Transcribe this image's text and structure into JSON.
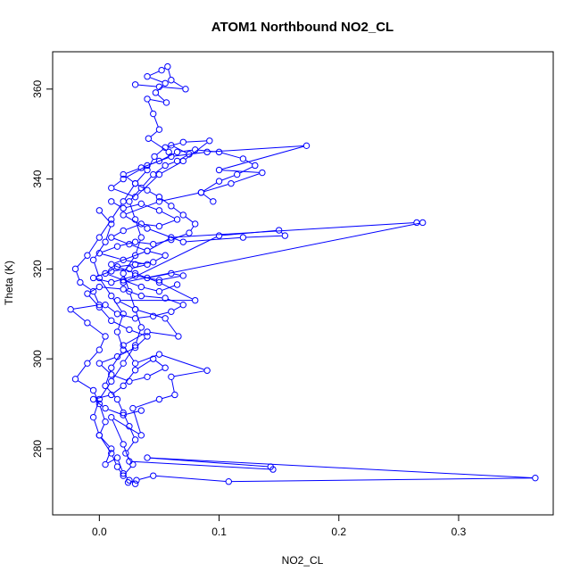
{
  "chart_data": {
    "type": "scatter",
    "title": "ATOM1 Northbound NO2_CL",
    "xlabel": "NO2_CL",
    "ylabel": "Theta (K)",
    "xlim": [
      -0.039,
      0.379
    ],
    "ylim": [
      265.3,
      368.3
    ],
    "xticks": [
      {
        "value": 0.0,
        "label": "0.0"
      },
      {
        "value": 0.1,
        "label": "0.1"
      },
      {
        "value": 0.2,
        "label": "0.2"
      },
      {
        "value": 0.3,
        "label": "0.3"
      }
    ],
    "yticks": [
      {
        "value": 280,
        "label": "280"
      },
      {
        "value": 300,
        "label": "300"
      },
      {
        "value": 320,
        "label": "320"
      },
      {
        "value": 340,
        "label": "340"
      },
      {
        "value": 360,
        "label": "360"
      }
    ],
    "color": "#0000ff",
    "marker": "open-circle",
    "connected": true,
    "grid": false,
    "legend": "none",
    "series": [
      {
        "points": [
          [
            0.024,
            272.5
          ],
          [
            0.031,
            273.0
          ],
          [
            0.045,
            274.0
          ],
          [
            0.108,
            272.7
          ],
          [
            0.364,
            273.5
          ],
          [
            0.04,
            278.0
          ],
          [
            0.143,
            276.0
          ],
          [
            0.145,
            275.4
          ],
          [
            0.025,
            277.2
          ],
          [
            0.02,
            281.0
          ],
          [
            0.01,
            287.0
          ],
          [
            0.035,
            283.0
          ],
          [
            0.028,
            289.0
          ],
          [
            0.05,
            291.0
          ],
          [
            0.063,
            292.0
          ],
          [
            0.06,
            296.0
          ],
          [
            0.09,
            297.4
          ],
          [
            0.05,
            301.0
          ],
          [
            0.03,
            299.0
          ],
          [
            0.02,
            303.0
          ],
          [
            0.04,
            306.0
          ],
          [
            0.066,
            305.0
          ],
          [
            0.055,
            309.0
          ],
          [
            0.03,
            311.0
          ],
          [
            0.015,
            313.0
          ],
          [
            0.08,
            313.0
          ],
          [
            0.05,
            317.0
          ],
          [
            0.03,
            319.0
          ],
          [
            0.01,
            321.0
          ],
          [
            0.04,
            324.0
          ],
          [
            0.06,
            327.0
          ],
          [
            0.265,
            330.3
          ],
          [
            0.27,
            330.3
          ],
          [
            0.02,
            317.0
          ],
          [
            0.1,
            327.4
          ],
          [
            0.15,
            328.6
          ],
          [
            0.155,
            327.4
          ],
          [
            0.12,
            327.0
          ],
          [
            0.07,
            326.0
          ],
          [
            0.04,
            329.0
          ],
          [
            0.02,
            332.0
          ],
          [
            0.05,
            335.0
          ],
          [
            0.085,
            337.0
          ],
          [
            0.11,
            339.0
          ],
          [
            0.136,
            341.4
          ],
          [
            0.1,
            342.0
          ],
          [
            0.173,
            347.4
          ],
          [
            0.09,
            346.0
          ],
          [
            0.06,
            345.0
          ],
          [
            0.04,
            343.0
          ],
          [
            0.02,
            340.0
          ],
          [
            0.01,
            338.0
          ],
          [
            0.03,
            336.0
          ],
          [
            0.05,
            341.0
          ],
          [
            0.07,
            344.0
          ],
          [
            0.092,
            348.5
          ],
          [
            0.07,
            348.2
          ],
          [
            0.055,
            347.0
          ],
          [
            0.046,
            345.0
          ],
          [
            0.04,
            342.0
          ],
          [
            0.03,
            339.0
          ],
          [
            0.02,
            335.0
          ],
          [
            0.01,
            331.0
          ],
          [
            0.0,
            327.0
          ],
          [
            -0.01,
            323.0
          ],
          [
            -0.02,
            320.0
          ],
          [
            -0.016,
            317.0
          ],
          [
            -0.005,
            315.0
          ],
          [
            0.0,
            312.0
          ],
          [
            -0.024,
            311.0
          ],
          [
            -0.01,
            308.0
          ],
          [
            0.005,
            305.0
          ],
          [
            0.0,
            302.0
          ],
          [
            -0.01,
            299.0
          ],
          [
            -0.02,
            295.5
          ],
          [
            -0.005,
            293.0
          ],
          [
            0.0,
            290.0
          ],
          [
            0.005,
            286.0
          ],
          [
            0.0,
            283.0
          ],
          [
            0.01,
            280.0
          ],
          [
            0.005,
            276.5
          ],
          [
            0.015,
            278.0
          ],
          [
            0.02,
            274.5
          ],
          [
            0.025,
            273.0
          ],
          [
            0.03,
            272.2
          ]
        ]
      },
      {
        "points": [
          [
            0.03,
            361.0
          ],
          [
            0.05,
            360.5
          ],
          [
            0.072,
            360.0
          ],
          [
            0.06,
            362.0
          ],
          [
            0.057,
            365.0
          ],
          [
            0.052,
            364.2
          ],
          [
            0.04,
            362.8
          ],
          [
            0.055,
            361.3
          ],
          [
            0.047,
            359.2
          ],
          [
            0.056,
            357.0
          ],
          [
            0.04,
            357.8
          ],
          [
            0.045,
            354.5
          ],
          [
            0.05,
            351.0
          ],
          [
            0.041,
            349.0
          ],
          [
            0.058,
            346.0
          ]
        ]
      },
      {
        "points": [
          [
            0.0,
            333.0
          ],
          [
            0.01,
            330.0
          ],
          [
            0.005,
            326.0
          ],
          [
            -0.005,
            322.0
          ],
          [
            0.0,
            318.0
          ],
          [
            0.01,
            314.0
          ],
          [
            0.02,
            310.0
          ],
          [
            0.015,
            306.0
          ],
          [
            0.02,
            302.0
          ],
          [
            0.01,
            298.0
          ],
          [
            0.005,
            294.0
          ],
          [
            0.015,
            291.0
          ],
          [
            0.02,
            288.0
          ],
          [
            0.025,
            285.0
          ],
          [
            0.03,
            282.0
          ],
          [
            0.022,
            279.0
          ],
          [
            0.028,
            276.5
          ],
          [
            0.02,
            274.0
          ],
          [
            0.015,
            276.0
          ],
          [
            0.01,
            279.0
          ],
          [
            0.0,
            283.0
          ],
          [
            -0.005,
            287.0
          ],
          [
            0.0,
            291.0
          ],
          [
            0.01,
            295.0
          ],
          [
            0.02,
            299.0
          ],
          [
            0.03,
            303.0
          ],
          [
            0.035,
            307.0
          ],
          [
            0.03,
            311.0
          ],
          [
            0.025,
            315.0
          ],
          [
            0.02,
            319.0
          ],
          [
            0.03,
            323.0
          ],
          [
            0.035,
            327.0
          ],
          [
            0.03,
            331.0
          ],
          [
            0.025,
            335.0
          ],
          [
            0.035,
            338.0
          ],
          [
            0.045,
            341.0
          ],
          [
            0.055,
            343.0
          ],
          [
            0.065,
            344.0
          ],
          [
            0.075,
            345.5
          ],
          [
            0.06,
            347.5
          ]
        ]
      },
      {
        "points": [
          [
            0.04,
            318.0
          ],
          [
            0.06,
            319.0
          ],
          [
            0.07,
            318.5
          ],
          [
            0.05,
            317.5
          ],
          [
            0.03,
            318.5
          ],
          [
            0.01,
            317.0
          ],
          [
            -0.005,
            318.0
          ],
          [
            0.01,
            319.5
          ],
          [
            0.025,
            320.0
          ],
          [
            0.04,
            321.0
          ],
          [
            0.02,
            322.0
          ],
          [
            0.0,
            323.5
          ],
          [
            0.015,
            325.0
          ],
          [
            0.03,
            326.0
          ],
          [
            0.045,
            325.5
          ],
          [
            0.06,
            326.5
          ],
          [
            0.075,
            328.0
          ],
          [
            0.08,
            330.0
          ],
          [
            0.07,
            332.0
          ],
          [
            0.06,
            334.0
          ],
          [
            0.05,
            336.0
          ],
          [
            0.04,
            337.5
          ],
          [
            0.03,
            339.0
          ],
          [
            0.02,
            341.0
          ],
          [
            0.035,
            342.5
          ],
          [
            0.05,
            344.0
          ],
          [
            0.065,
            346.0
          ],
          [
            0.08,
            346.5
          ],
          [
            0.1,
            346.0
          ],
          [
            0.12,
            344.5
          ],
          [
            0.13,
            343.0
          ],
          [
            0.115,
            341.0
          ],
          [
            0.1,
            339.5
          ],
          [
            0.085,
            337.0
          ],
          [
            0.095,
            335.0
          ]
        ]
      },
      {
        "points": [
          [
            0.005,
            312.0
          ],
          [
            0.015,
            310.0
          ],
          [
            0.03,
            309.0
          ],
          [
            0.045,
            309.5
          ],
          [
            0.06,
            310.5
          ],
          [
            0.07,
            312.0
          ],
          [
            0.055,
            313.5
          ],
          [
            0.035,
            314.0
          ],
          [
            0.02,
            315.5
          ],
          [
            0.0,
            316.0
          ],
          [
            -0.01,
            314.5
          ],
          [
            0.0,
            311.5
          ],
          [
            0.01,
            308.5
          ],
          [
            0.025,
            306.5
          ],
          [
            0.04,
            305.0
          ],
          [
            0.03,
            302.5
          ],
          [
            0.015,
            300.5
          ],
          [
            0.0,
            299.0
          ],
          [
            0.01,
            296.5
          ],
          [
            0.025,
            295.0
          ],
          [
            0.04,
            296.0
          ],
          [
            0.055,
            298.0
          ],
          [
            0.045,
            300.0
          ],
          [
            0.03,
            297.5
          ],
          [
            0.02,
            294.0
          ],
          [
            0.01,
            292.0
          ],
          [
            -0.005,
            291.0
          ],
          [
            0.005,
            289.0
          ],
          [
            0.02,
            287.5
          ],
          [
            0.035,
            288.5
          ]
        ]
      },
      {
        "points": [
          [
            0.01,
            335.0
          ],
          [
            0.02,
            333.5
          ],
          [
            0.035,
            334.5
          ],
          [
            0.05,
            333.0
          ],
          [
            0.065,
            331.0
          ],
          [
            0.05,
            329.5
          ],
          [
            0.035,
            330.0
          ],
          [
            0.02,
            328.5
          ],
          [
            0.01,
            327.0
          ],
          [
            0.025,
            325.5
          ],
          [
            0.04,
            324.0
          ],
          [
            0.055,
            323.0
          ],
          [
            0.045,
            321.5
          ],
          [
            0.03,
            321.0
          ],
          [
            0.015,
            320.5
          ],
          [
            0.005,
            319.0
          ],
          [
            0.02,
            317.5
          ],
          [
            0.035,
            316.0
          ],
          [
            0.05,
            315.0
          ],
          [
            0.065,
            316.5
          ]
        ]
      }
    ]
  }
}
